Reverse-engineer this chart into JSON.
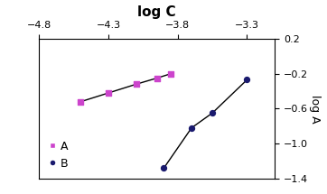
{
  "title": "log C",
  "ylabel": "log A",
  "xlim": [
    -4.8,
    -3.1
  ],
  "ylim": [
    -1.4,
    0.2
  ],
  "xticks": [
    -4.8,
    -4.3,
    -3.8,
    -3.3
  ],
  "yticks": [
    0.2,
    -0.2,
    -0.6,
    -1.0,
    -1.4
  ],
  "series_A": {
    "x": [
      -4.5,
      -4.3,
      -4.1,
      -3.95,
      -3.85
    ],
    "y": [
      -0.52,
      -0.42,
      -0.32,
      -0.25,
      -0.2
    ],
    "color": "#cc44cc",
    "marker": "s",
    "label": "A"
  },
  "series_B": {
    "x": [
      -3.9,
      -3.7,
      -3.55,
      -3.3
    ],
    "y": [
      -1.28,
      -0.82,
      -0.65,
      -0.27
    ],
    "color": "#1a1a6e",
    "marker": "o",
    "label": "B"
  },
  "line_color": "#000000",
  "background_color": "#ffffff",
  "title_fontsize": 11,
  "axis_fontsize": 9,
  "tick_fontsize": 8
}
